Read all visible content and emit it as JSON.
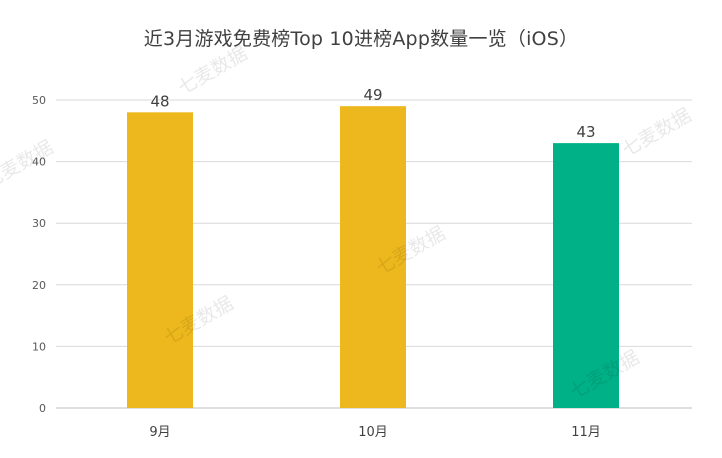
{
  "chart_data": {
    "type": "bar",
    "title": "近3月游戏免费榜Top 10进榜App数量一览（iOS）",
    "categories": [
      "9月",
      "10月",
      "11月"
    ],
    "values": [
      48,
      49,
      43
    ],
    "data_labels": [
      "48",
      "49",
      "43"
    ],
    "bar_colors": [
      "#EDB81D",
      "#EDB81D",
      "#00B087"
    ],
    "ylim": [
      0,
      50
    ],
    "yticks": [
      "0",
      "10",
      "20",
      "30",
      "40",
      "50"
    ],
    "xlabel": "",
    "ylabel": "",
    "grid": true,
    "legend": "none"
  },
  "watermark": {
    "text": "七麦数据"
  },
  "colors": {
    "grid": "#d9d9d9",
    "axis": "#bfbfbf",
    "tick_text": "#595959",
    "label_text": "#404040"
  }
}
